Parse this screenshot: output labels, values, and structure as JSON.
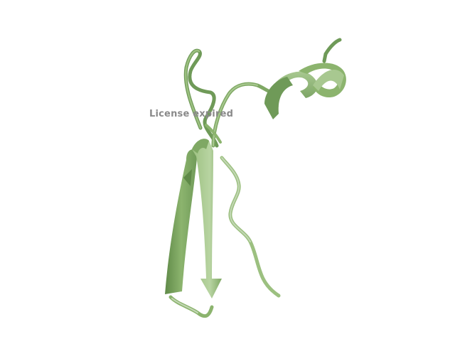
{
  "scene": {
    "background_color": "#ffffff",
    "subject": "protein-ribbon-cartoon",
    "ribbon_colors": {
      "light": "#a8c890",
      "mid": "#8cb46e",
      "dark": "#5f8a48",
      "coil": "#9cc080",
      "coil_light": "#b9cfae"
    }
  },
  "watermark": {
    "text": "License expired",
    "color": "#8a8a8a"
  }
}
